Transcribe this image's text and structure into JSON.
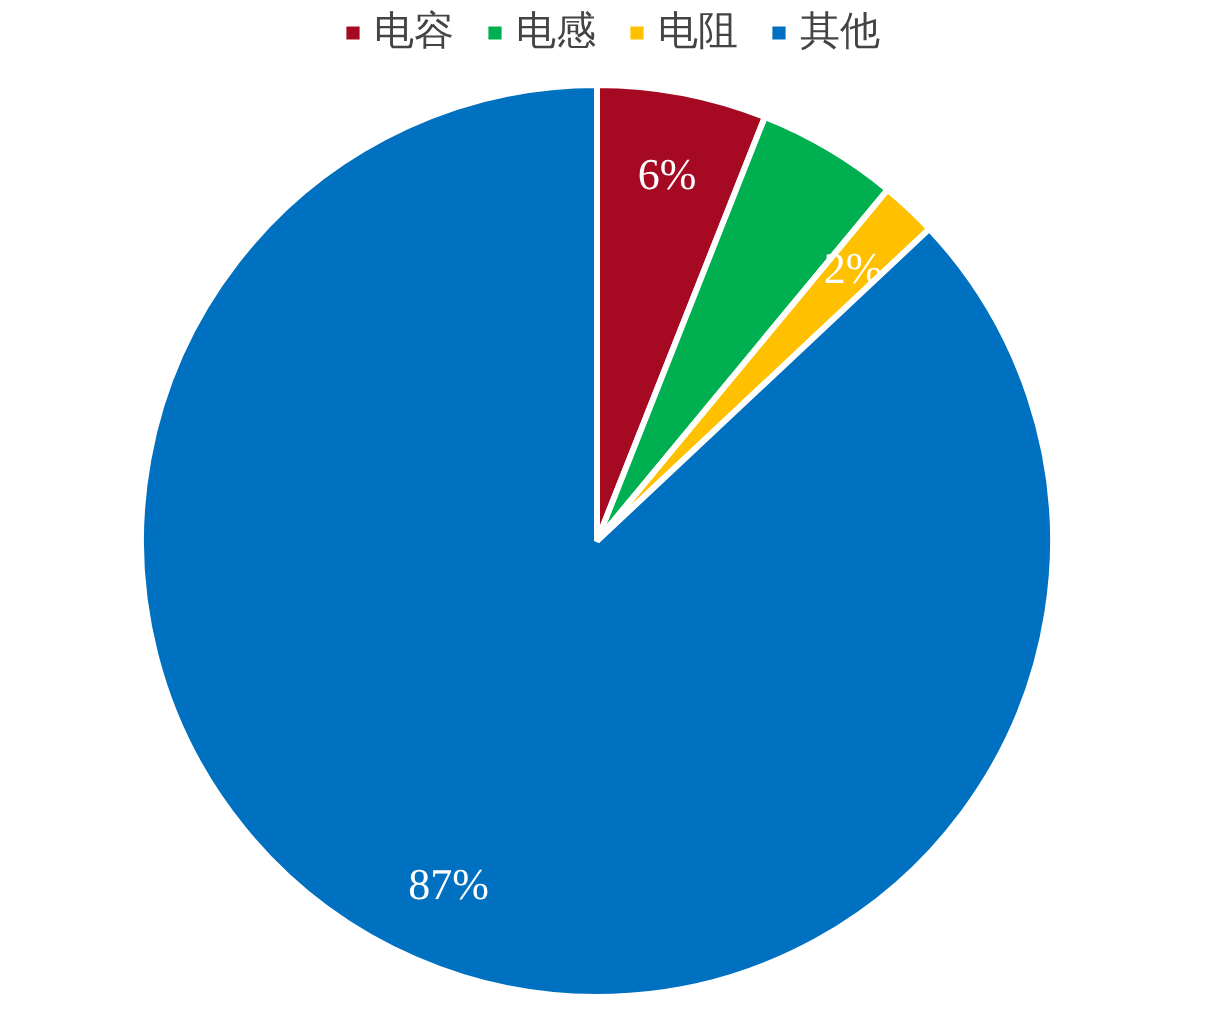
{
  "chart_data": {
    "type": "pie",
    "categories": [
      "电容",
      "电感",
      "电阻",
      "其他"
    ],
    "values": [
      6,
      5,
      2,
      87
    ],
    "colors": [
      "#a50a22",
      "#00b050",
      "#ffc000",
      "#0070c0"
    ],
    "value_labels": [
      "6%",
      null,
      "2%",
      "87%"
    ],
    "legend": "top"
  }
}
